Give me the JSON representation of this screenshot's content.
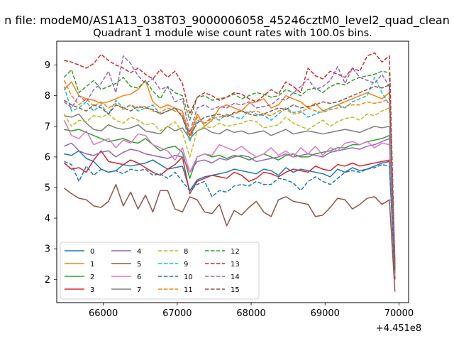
{
  "suptitle": "n file: modeM0/AS1A13_038T03_9000006058_45246cztM0_level2_quad_clean",
  "chart_data": {
    "type": "line",
    "title": "Quadrant 1 module wise count rates with 100.0s bins.",
    "xlabel": "",
    "ylabel": "",
    "x_offset_label": "+4.451e8",
    "xlim": [
      65370,
      70130
    ],
    "ylim": [
      1.24,
      9.78
    ],
    "xticks": [
      "66000",
      "67000",
      "68000",
      "69000",
      "70000"
    ],
    "yticks": [
      "2",
      "3",
      "4",
      "5",
      "6",
      "7",
      "8",
      "9"
    ],
    "grid": false,
    "legend_position": "lower-left",
    "x": [
      65470,
      65570,
      65670,
      65770,
      65870,
      65970,
      66070,
      66170,
      66270,
      66370,
      66470,
      66570,
      66670,
      66770,
      66870,
      66970,
      67070,
      67170,
      67270,
      67370,
      67470,
      67570,
      67670,
      67770,
      67870,
      67970,
      68070,
      68170,
      68270,
      68370,
      68470,
      68570,
      68670,
      68770,
      68870,
      68970,
      69070,
      69170,
      69270,
      69370,
      69470,
      69570,
      69670,
      69770,
      69870,
      69945
    ],
    "series": [
      {
        "name": "0",
        "color": "#1f77b4",
        "dash": "solid",
        "values": [
          6.1,
          6.05,
          6.2,
          5.95,
          5.85,
          5.6,
          5.5,
          5.55,
          5.75,
          5.7,
          5.75,
          5.8,
          5.9,
          5.75,
          5.6,
          5.65,
          5.7,
          4.9,
          5.25,
          5.35,
          5.4,
          5.45,
          5.5,
          5.6,
          5.55,
          5.5,
          5.45,
          5.6,
          5.55,
          5.4,
          5.65,
          5.5,
          5.6,
          5.55,
          5.5,
          5.45,
          5.35,
          5.6,
          5.5,
          5.65,
          5.55,
          5.6,
          5.7,
          5.8,
          5.85,
          2.0
        ]
      },
      {
        "name": "1",
        "color": "#ff7f0e",
        "dash": "solid",
        "values": [
          8.2,
          8.45,
          8.0,
          7.9,
          7.85,
          7.75,
          7.8,
          7.9,
          8.0,
          8.05,
          8.2,
          8.5,
          7.8,
          7.6,
          7.7,
          7.6,
          7.5,
          6.7,
          7.4,
          7.0,
          7.2,
          7.6,
          7.7,
          7.6,
          7.5,
          7.75,
          7.8,
          7.9,
          7.6,
          7.7,
          8.0,
          7.9,
          7.8,
          7.6,
          7.75,
          7.5,
          7.6,
          7.7,
          7.8,
          7.9,
          8.0,
          8.1,
          8.0,
          7.9,
          8.1,
          2.5
        ]
      },
      {
        "name": "2",
        "color": "#2ca02c",
        "dash": "solid",
        "values": [
          6.9,
          6.85,
          6.9,
          6.8,
          6.7,
          6.6,
          6.5,
          6.55,
          6.6,
          6.5,
          6.45,
          6.6,
          6.4,
          6.2,
          6.3,
          6.35,
          6.15,
          5.3,
          6.0,
          6.1,
          6.0,
          6.05,
          5.95,
          6.05,
          6.0,
          5.9,
          6.0,
          6.1,
          6.0,
          5.9,
          6.05,
          6.1,
          6.0,
          6.0,
          6.1,
          6.15,
          6.2,
          6.3,
          6.3,
          6.4,
          6.4,
          6.5,
          6.55,
          6.6,
          6.7,
          2.3
        ]
      },
      {
        "name": "3",
        "color": "#d62728",
        "dash": "solid",
        "values": [
          5.8,
          5.6,
          5.65,
          5.5,
          5.9,
          6.2,
          5.85,
          5.8,
          5.75,
          5.9,
          5.8,
          5.65,
          5.5,
          5.4,
          5.6,
          5.75,
          6.0,
          4.8,
          5.2,
          5.3,
          5.4,
          5.35,
          5.3,
          5.5,
          5.4,
          5.2,
          5.3,
          5.5,
          5.45,
          5.35,
          5.5,
          5.6,
          5.55,
          5.5,
          5.7,
          5.6,
          5.55,
          5.75,
          5.7,
          5.8,
          5.7,
          5.75,
          5.8,
          5.85,
          5.9,
          2.0
        ]
      },
      {
        "name": "4",
        "color": "#9467bd",
        "dash": "solid",
        "values": [
          6.35,
          6.45,
          6.2,
          6.1,
          6.05,
          6.15,
          6.2,
          6.0,
          6.15,
          6.25,
          6.2,
          6.1,
          6.05,
          6.0,
          5.95,
          6.05,
          6.0,
          5.5,
          5.85,
          5.9,
          5.8,
          5.95,
          5.9,
          6.0,
          6.05,
          6.0,
          5.85,
          5.9,
          5.95,
          6.0,
          6.1,
          6.0,
          6.05,
          6.1,
          6.05,
          6.0,
          6.15,
          6.2,
          6.25,
          6.3,
          6.25,
          6.35,
          6.4,
          6.5,
          6.6,
          2.2
        ]
      },
      {
        "name": "5",
        "color": "#8c564b",
        "dash": "solid",
        "values": [
          4.98,
          4.8,
          4.65,
          4.6,
          4.4,
          4.35,
          4.55,
          5.1,
          4.4,
          4.85,
          4.3,
          4.75,
          4.2,
          4.9,
          4.9,
          4.3,
          4.2,
          4.7,
          4.6,
          4.2,
          4.15,
          4.45,
          3.75,
          4.25,
          4.1,
          4.35,
          4.55,
          4.2,
          4.05,
          4.6,
          4.7,
          4.55,
          4.5,
          4.45,
          4.05,
          4.1,
          4.35,
          4.65,
          4.6,
          4.3,
          4.45,
          4.65,
          4.7,
          4.45,
          4.6,
          1.6
        ]
      },
      {
        "name": "6",
        "color": "#e377c2",
        "dash": "solid",
        "values": [
          7.2,
          6.7,
          6.6,
          6.85,
          6.4,
          6.5,
          6.6,
          6.3,
          6.55,
          6.45,
          6.75,
          6.7,
          6.4,
          6.3,
          6.2,
          5.9,
          6.3,
          5.5,
          6.0,
          6.1,
          6.05,
          6.4,
          6.3,
          6.2,
          6.35,
          6.15,
          6.0,
          6.1,
          6.3,
          6.05,
          6.2,
          6.0,
          6.3,
          6.1,
          6.35,
          6.05,
          6.3,
          6.2,
          6.45,
          6.5,
          6.4,
          6.5,
          6.3,
          6.45,
          6.4,
          2.1
        ]
      },
      {
        "name": "7",
        "color": "#7f7f7f",
        "dash": "solid",
        "values": [
          7.35,
          7.3,
          7.4,
          7.1,
          6.9,
          6.85,
          7.05,
          6.95,
          6.9,
          6.95,
          7.05,
          6.85,
          6.8,
          6.75,
          7.0,
          6.85,
          6.95,
          6.6,
          6.85,
          6.95,
          6.8,
          6.75,
          6.9,
          6.8,
          6.85,
          6.75,
          6.8,
          6.85,
          6.7,
          6.8,
          6.9,
          6.75,
          6.8,
          6.85,
          6.8,
          6.75,
          6.8,
          6.85,
          6.9,
          6.85,
          6.8,
          6.9,
          7.0,
          6.95,
          7.0,
          2.2
        ]
      },
      {
        "name": "8",
        "color": "#bcbd22",
        "dash": "dashed",
        "values": [
          7.4,
          7.0,
          7.2,
          7.15,
          7.35,
          7.3,
          7.4,
          7.2,
          7.1,
          7.3,
          7.2,
          7.05,
          7.1,
          6.85,
          7.0,
          7.15,
          6.8,
          6.0,
          6.85,
          7.0,
          6.95,
          7.1,
          7.0,
          7.05,
          7.1,
          7.2,
          7.15,
          6.95,
          7.0,
          7.05,
          7.3,
          7.1,
          7.0,
          6.9,
          7.05,
          7.2,
          7.0,
          7.15,
          7.25,
          7.3,
          7.2,
          7.4,
          7.35,
          7.5,
          7.6,
          2.5
        ]
      },
      {
        "name": "9",
        "color": "#17becf",
        "dash": "dashed",
        "values": [
          8.3,
          7.5,
          7.6,
          7.8,
          7.5,
          7.7,
          7.4,
          7.85,
          7.6,
          7.7,
          7.5,
          7.6,
          7.7,
          7.4,
          7.5,
          7.6,
          7.3,
          6.5,
          7.2,
          7.1,
          7.3,
          7.2,
          7.4,
          7.3,
          7.25,
          7.5,
          7.4,
          7.35,
          7.2,
          7.4,
          7.6,
          7.45,
          7.5,
          7.3,
          7.4,
          7.5,
          7.6,
          7.7,
          7.6,
          7.8,
          7.9,
          8.0,
          8.6,
          8.1,
          7.7,
          2.4
        ]
      },
      {
        "name": "10",
        "color": "#1f77b4",
        "dash": "dashed",
        "values": [
          5.85,
          5.75,
          5.2,
          5.7,
          5.4,
          5.6,
          5.5,
          5.55,
          5.45,
          5.6,
          5.55,
          5.6,
          5.4,
          5.45,
          5.3,
          5.5,
          5.2,
          4.9,
          5.1,
          5.2,
          4.7,
          4.9,
          4.85,
          5.05,
          5.1,
          5.05,
          5.2,
          5.1,
          5.1,
          5.3,
          5.25,
          5.15,
          4.9,
          5.2,
          5.35,
          5.2,
          5.1,
          5.3,
          5.5,
          5.55,
          5.5,
          5.6,
          5.65,
          5.75,
          5.7,
          2.3
        ]
      },
      {
        "name": "11",
        "color": "#ff7f0e",
        "dash": "dashed",
        "values": [
          8.5,
          8.0,
          7.7,
          7.9,
          7.65,
          7.8,
          7.6,
          7.75,
          7.55,
          7.7,
          7.6,
          7.65,
          7.5,
          7.45,
          7.6,
          7.5,
          7.4,
          6.6,
          7.3,
          7.1,
          7.25,
          7.3,
          7.35,
          7.4,
          7.5,
          7.45,
          7.5,
          7.4,
          7.35,
          7.5,
          7.55,
          7.4,
          7.45,
          7.6,
          7.5,
          7.45,
          7.55,
          7.6,
          7.65,
          7.7,
          7.7,
          7.8,
          7.75,
          7.8,
          7.9,
          2.6
        ]
      },
      {
        "name": "12",
        "color": "#2ca02c",
        "dash": "dashed",
        "values": [
          8.6,
          8.85,
          8.1,
          8.3,
          8.5,
          8.2,
          8.3,
          8.4,
          8.6,
          8.3,
          8.25,
          8.5,
          8.15,
          7.9,
          8.3,
          8.1,
          8.0,
          7.2,
          7.95,
          8.0,
          7.85,
          7.9,
          7.95,
          8.05,
          7.9,
          8.0,
          8.1,
          8.05,
          7.95,
          8.0,
          8.2,
          8.1,
          8.0,
          8.2,
          8.25,
          8.1,
          8.3,
          8.4,
          8.35,
          8.5,
          8.6,
          8.65,
          8.7,
          8.8,
          8.75,
          2.3
        ]
      },
      {
        "name": "13",
        "color": "#d62728",
        "dash": "dashed",
        "values": [
          9.15,
          9.1,
          9.0,
          8.9,
          9.05,
          9.35,
          9.15,
          9.0,
          8.9,
          8.75,
          8.9,
          8.7,
          8.55,
          8.85,
          8.6,
          8.8,
          8.4,
          7.4,
          7.95,
          8.1,
          8.0,
          7.85,
          7.95,
          8.1,
          8.05,
          7.9,
          7.8,
          8.0,
          8.2,
          8.05,
          8.45,
          8.3,
          8.1,
          8.9,
          8.65,
          8.55,
          8.8,
          8.7,
          8.6,
          8.9,
          8.8,
          9.3,
          9.4,
          9.1,
          9.3,
          2.5
        ]
      },
      {
        "name": "14",
        "color": "#9467bd",
        "dash": "dashed",
        "values": [
          7.8,
          7.6,
          8.0,
          7.8,
          8.2,
          8.4,
          8.8,
          8.1,
          9.3,
          9.05,
          8.65,
          8.4,
          8.55,
          8.2,
          8.3,
          7.8,
          7.9,
          6.8,
          7.6,
          7.7,
          7.55,
          7.65,
          7.6,
          7.75,
          7.7,
          7.8,
          7.6,
          7.65,
          7.7,
          7.9,
          7.85,
          8.1,
          8.3,
          8.55,
          8.2,
          8.3,
          8.5,
          8.95,
          8.4,
          8.9,
          8.6,
          8.5,
          8.4,
          8.7,
          8.3,
          2.4
        ]
      },
      {
        "name": "15",
        "color": "#8c564b",
        "dash": "dashed",
        "values": [
          7.85,
          7.7,
          7.6,
          7.5,
          7.7,
          7.6,
          7.4,
          7.7,
          7.6,
          7.5,
          7.65,
          7.6,
          7.55,
          7.4,
          7.5,
          7.6,
          7.3,
          6.7,
          7.1,
          7.3,
          7.35,
          7.4,
          7.3,
          7.45,
          7.5,
          7.4,
          7.35,
          7.4,
          7.5,
          7.6,
          7.55,
          7.7,
          7.6,
          7.65,
          7.7,
          7.8,
          7.75,
          7.8,
          7.9,
          8.0,
          8.1,
          8.2,
          8.3,
          8.25,
          8.35,
          2.3
        ]
      }
    ]
  }
}
